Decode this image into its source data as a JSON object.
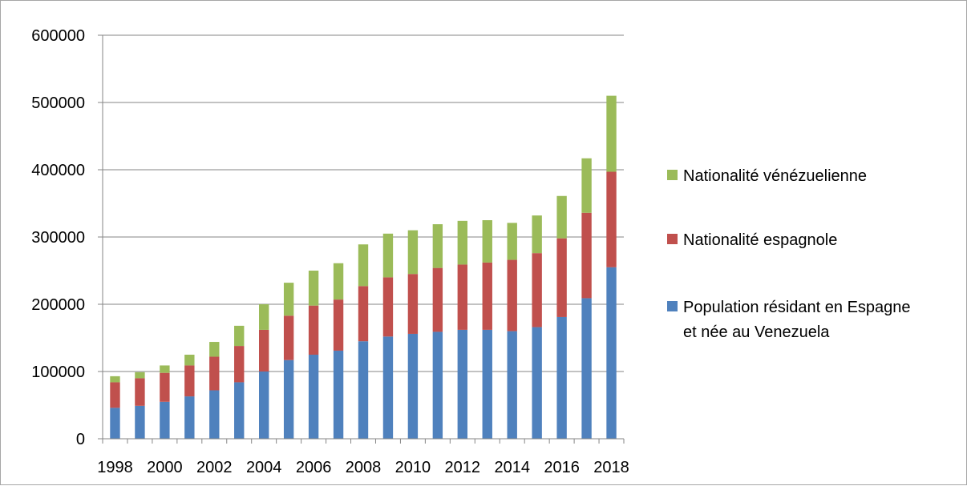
{
  "chart_data": {
    "type": "bar",
    "stacked": true,
    "categories": [
      "1998",
      "1999",
      "2000",
      "2001",
      "2002",
      "2003",
      "2004",
      "2005",
      "2006",
      "2007",
      "2008",
      "2009",
      "2010",
      "2011",
      "2012",
      "2013",
      "2014",
      "2015",
      "2016",
      "2017",
      "2018"
    ],
    "x_tick_labels": [
      "1998",
      "2000",
      "2002",
      "2004",
      "2006",
      "2008",
      "2010",
      "2012",
      "2014",
      "2016",
      "2018"
    ],
    "y_tick_labels": [
      "0",
      "100000",
      "200000",
      "300000",
      "400000",
      "500000",
      "600000"
    ],
    "ylim": [
      0,
      600000
    ],
    "grid": true,
    "legend_position": "right",
    "series": [
      {
        "name": "Population résidant en Espagne et née au Venezuela",
        "legend_lines": [
          "Population résidant en Espagne",
          "et née au Venezuela"
        ],
        "color": "#4f81bd",
        "values": [
          46000,
          49000,
          55000,
          63000,
          72000,
          84000,
          100000,
          117000,
          125000,
          131000,
          145000,
          152000,
          156000,
          159000,
          162000,
          162000,
          160000,
          166000,
          181000,
          209000,
          255000
        ]
      },
      {
        "name": "Nationalité espagnole",
        "legend_lines": [
          "Nationalité espagnole"
        ],
        "color": "#c0504d",
        "values": [
          38000,
          41000,
          43000,
          46000,
          50000,
          54000,
          62000,
          66000,
          73000,
          76000,
          82000,
          88000,
          89000,
          95000,
          97000,
          100000,
          106000,
          110000,
          117000,
          127000,
          142000
        ]
      },
      {
        "name": "Nationalité vénézuelienne",
        "legend_lines": [
          "Nationalité vénézuelienne"
        ],
        "color": "#9bbb59",
        "values": [
          9000,
          9000,
          11000,
          16000,
          22000,
          30000,
          38000,
          49000,
          52000,
          54000,
          62000,
          65000,
          65000,
          65000,
          65000,
          63000,
          55000,
          56000,
          63000,
          81000,
          113000
        ]
      }
    ]
  }
}
